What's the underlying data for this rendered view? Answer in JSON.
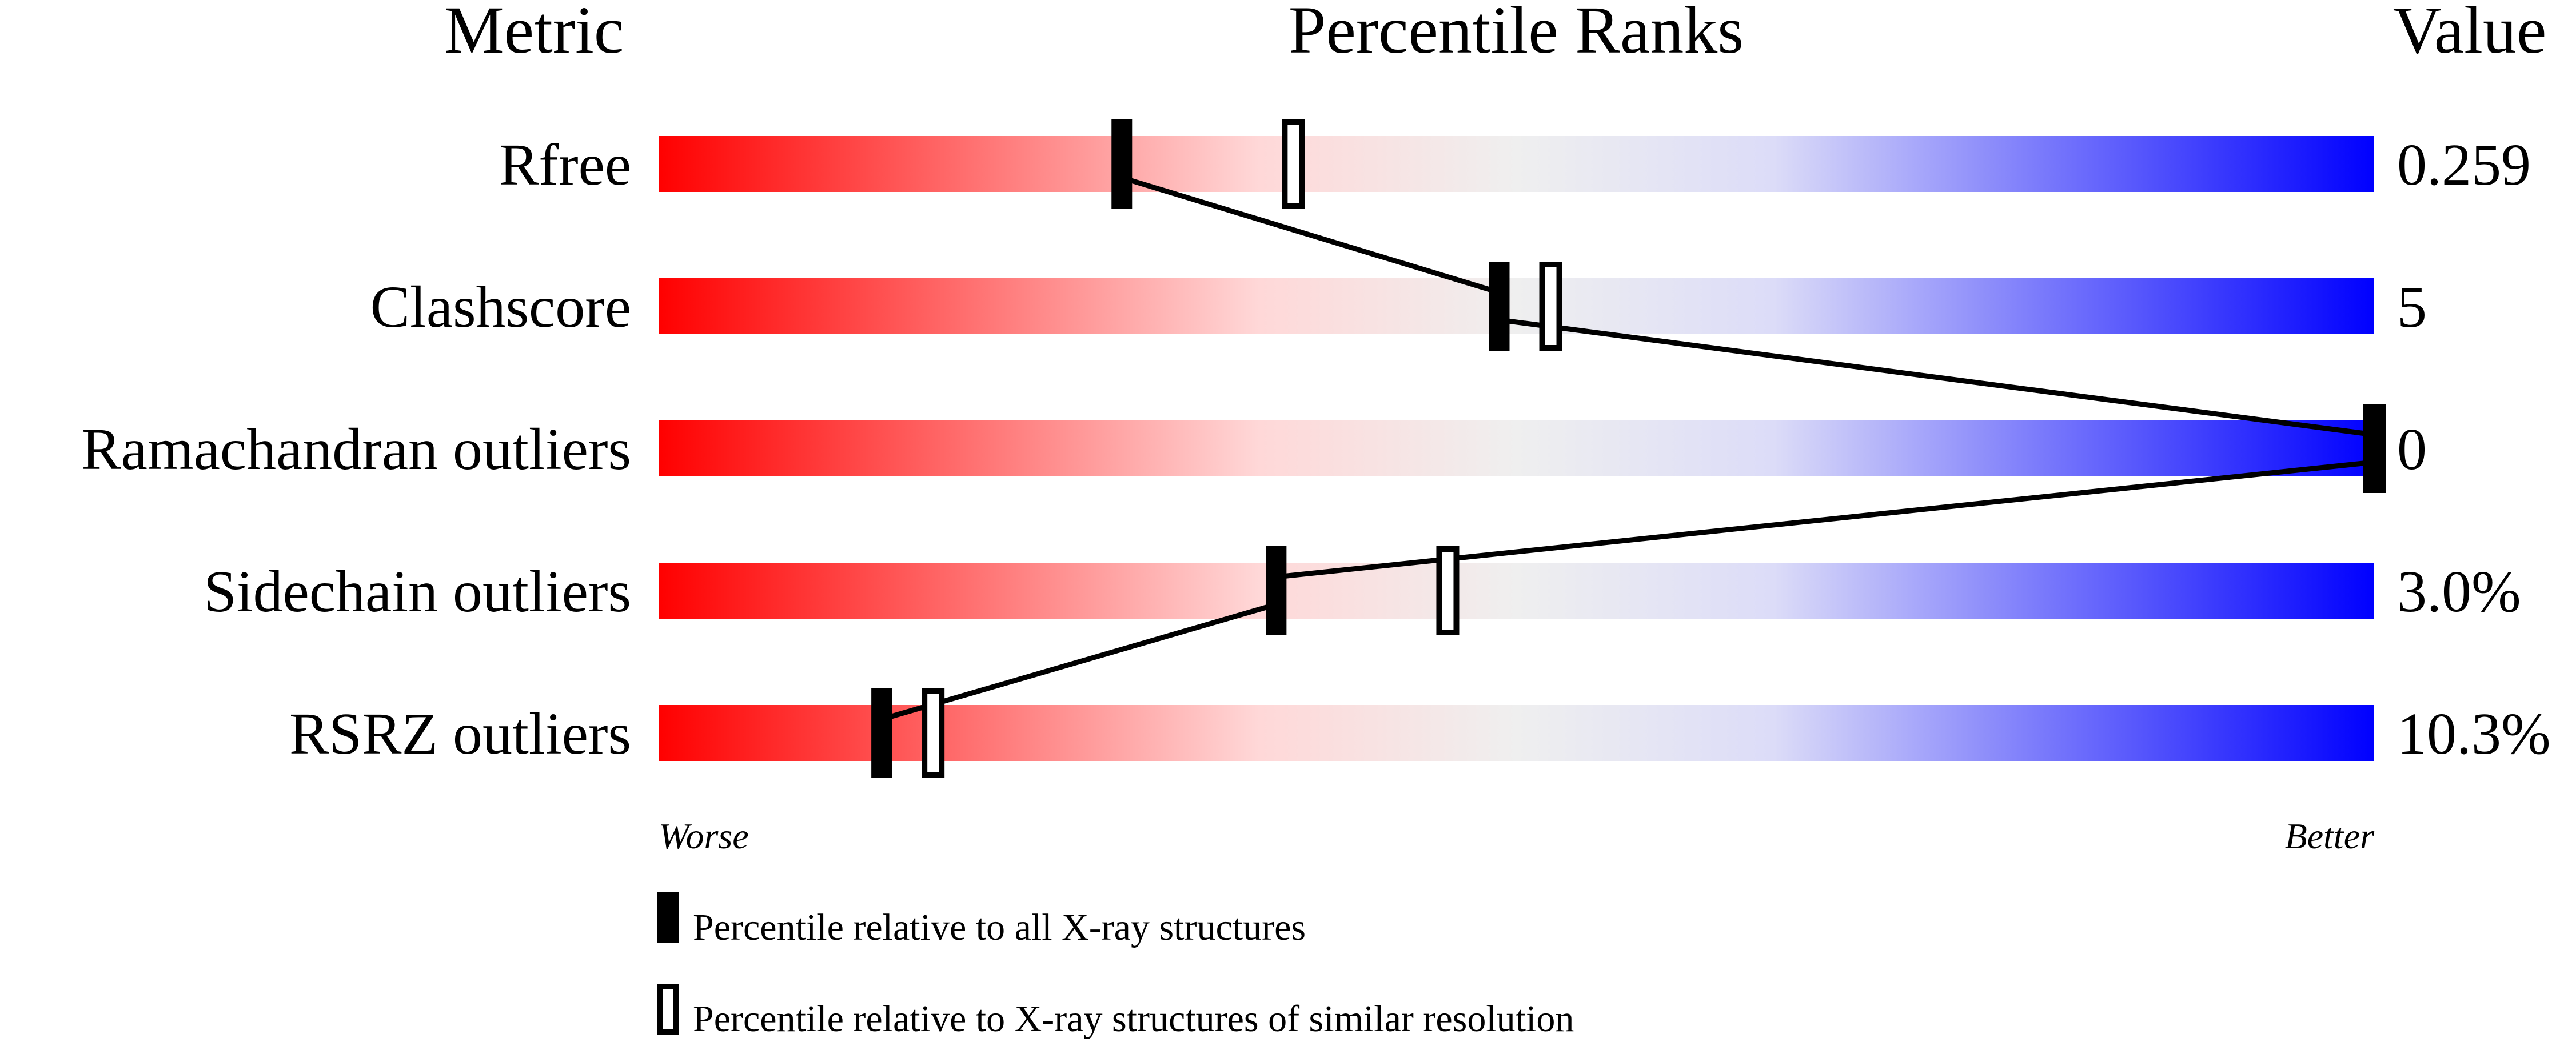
{
  "chart_data": {
    "type": "percentile-bar",
    "headers": {
      "metric": "Metric",
      "ranks": "Percentile Ranks",
      "value": "Value"
    },
    "xlim": [
      0,
      100
    ],
    "axis_labels": {
      "left": "Worse",
      "right": "Better"
    },
    "gradient_colors": [
      "#ff0000",
      "#ffd8d8",
      "#efefef",
      "#dcdcf8",
      "#0000ff"
    ],
    "metrics": [
      {
        "name": "Rfree",
        "value": "0.259",
        "percentile_all": 27,
        "percentile_similar": 37
      },
      {
        "name": "Clashscore",
        "value": "5",
        "percentile_all": 49,
        "percentile_similar": 52
      },
      {
        "name": "Ramachandran outliers",
        "value": "0",
        "percentile_all": 100,
        "percentile_similar": 100
      },
      {
        "name": "Sidechain outliers",
        "value": "3.0%",
        "percentile_all": 36,
        "percentile_similar": 46
      },
      {
        "name": "RSRZ outliers",
        "value": "10.3%",
        "percentile_all": 13,
        "percentile_similar": 16
      }
    ],
    "legend": [
      {
        "marker": "filled",
        "label": "Percentile relative to all X-ray structures"
      },
      {
        "marker": "open",
        "label": "Percentile relative to X-ray structures of similar resolution"
      }
    ]
  }
}
